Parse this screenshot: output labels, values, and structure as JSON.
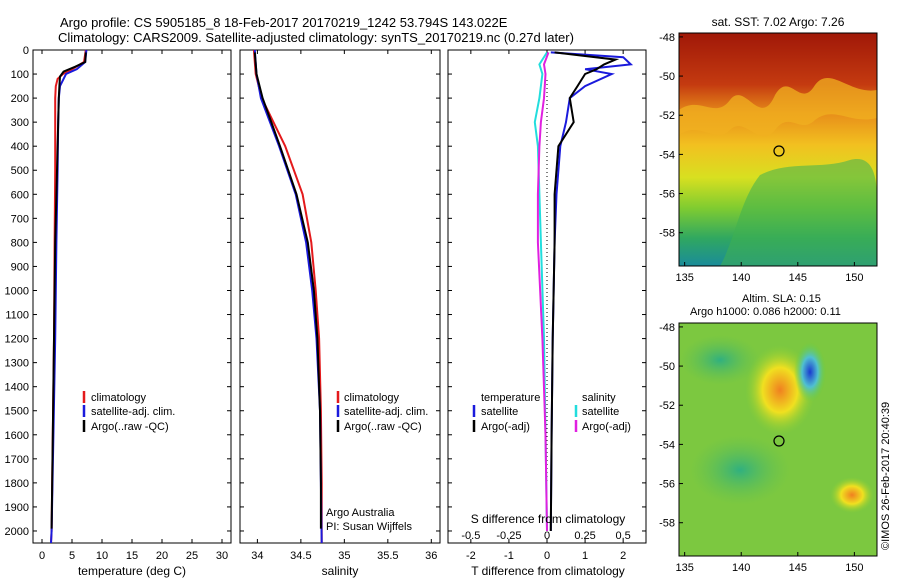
{
  "header": {
    "line1": "Argo profile: CS 5905185_8 18-Feb-2017 20170219_1242 53.794S 143.022E",
    "line2": "Climatology: CARS2009. Satellite-adjusted climatology: synTS_20170219.nc (0.27d later)"
  },
  "colors": {
    "climatology": "#e41a1c",
    "satellite": "#1a1adc",
    "argo": "#000000",
    "sat_salinity": "#22dddd",
    "argo_salinity": "#e020e0"
  },
  "chart_data": [
    {
      "type": "line",
      "name": "temperature",
      "xlabel": "temperature (deg C)",
      "ylabel": "",
      "xlim": [
        -1.5,
        31.5
      ],
      "ylim": [
        0,
        2050
      ],
      "y_reversed": true,
      "xticks": [
        "0",
        "5",
        "10",
        "15",
        "20",
        "25",
        "30"
      ],
      "yticks": [
        "0",
        "100",
        "200",
        "300",
        "400",
        "500",
        "600",
        "700",
        "800",
        "900",
        "1000",
        "1100",
        "1200",
        "1300",
        "1400",
        "1500",
        "1600",
        "1700",
        "1800",
        "1900",
        "2000"
      ],
      "legend": [
        "climatology",
        "satellite-adj. clim.",
        "Argo(..raw -QC)"
      ],
      "legend_position": "lower-center",
      "series": [
        {
          "name": "climatology",
          "depth": [
            0,
            50,
            80,
            100,
            120,
            150,
            200,
            300,
            500,
            800,
            1200,
            1600,
            2000,
            2050
          ],
          "values": [
            7.3,
            7.0,
            5.0,
            3.5,
            2.6,
            2.3,
            2.2,
            2.2,
            2.2,
            2.1,
            2.0,
            1.8,
            1.6,
            1.5
          ]
        },
        {
          "name": "satellite-adj. clim.",
          "depth": [
            0,
            50,
            80,
            100,
            150,
            200,
            300,
            500,
            800,
            1200,
            1600,
            2000,
            2050
          ],
          "values": [
            7.4,
            7.2,
            5.8,
            4.0,
            3.0,
            2.8,
            2.7,
            2.6,
            2.4,
            2.2,
            1.9,
            1.6,
            1.5
          ]
        },
        {
          "name": "Argo(..raw -QC)",
          "depth": [
            10,
            50,
            70,
            90,
            110,
            150,
            200,
            300,
            500,
            800,
            1200,
            1600,
            1990
          ],
          "values": [
            7.3,
            7.2,
            5.5,
            3.6,
            3.0,
            2.9,
            2.8,
            2.7,
            2.5,
            2.2,
            2.0,
            1.8,
            1.6
          ]
        }
      ]
    },
    {
      "type": "line",
      "name": "salinity",
      "xlabel": "salinity",
      "ylabel": "",
      "xlim": [
        33.8,
        36.1
      ],
      "ylim": [
        0,
        2050
      ],
      "y_reversed": true,
      "xticks": [
        "34",
        "34.5",
        "35",
        "35.5",
        "36"
      ],
      "legend": [
        "climatology",
        "satellite-adj. clim.",
        "Argo(..raw -QC)"
      ],
      "legend_position": "lower-right",
      "annotations": [
        "Argo Australia",
        "PI: Susan Wijffels"
      ],
      "series": [
        {
          "name": "climatology",
          "depth": [
            0,
            100,
            200,
            400,
            600,
            800,
            1000,
            1200,
            1500,
            1800,
            2050
          ],
          "values": [
            33.96,
            33.98,
            34.05,
            34.32,
            34.52,
            34.62,
            34.67,
            34.71,
            34.73,
            34.74,
            34.74
          ]
        },
        {
          "name": "satellite-adj. clim.",
          "depth": [
            0,
            100,
            200,
            400,
            600,
            800,
            1000,
            1200,
            1500,
            1800,
            2050
          ],
          "values": [
            33.97,
            33.99,
            34.04,
            34.25,
            34.44,
            34.56,
            34.63,
            34.68,
            34.72,
            34.73,
            34.74
          ]
        },
        {
          "name": "Argo(..raw -QC)",
          "depth": [
            10,
            100,
            200,
            400,
            600,
            800,
            1000,
            1200,
            1500,
            1800,
            1990
          ],
          "values": [
            33.97,
            33.99,
            34.06,
            34.26,
            34.45,
            34.58,
            34.65,
            34.69,
            34.72,
            34.73,
            34.73
          ]
        }
      ]
    },
    {
      "type": "line",
      "name": "difference-from-climatology",
      "xlabel": "T difference from climatology",
      "xlabel2": "S difference from climatology",
      "xlim": [
        -2.6,
        2.6
      ],
      "ylim": [
        0,
        2050
      ],
      "y_reversed": true,
      "xticks": [
        "-2",
        "-1",
        "0",
        "1",
        "2"
      ],
      "xticks2": [
        "-0.5",
        "-0.25",
        "0",
        "0.25",
        "0.5"
      ],
      "legend_titles": [
        "temperature",
        "salinity"
      ],
      "legend": [
        "satellite",
        "Argo(-adj)",
        "satellite",
        "Argo(-adj)"
      ],
      "series": [
        {
          "name": "T satellite",
          "depth": [
            10,
            30,
            60,
            80,
            100,
            150,
            200,
            300,
            400,
            600,
            800,
            1200,
            1600,
            2000
          ],
          "values": [
            0.1,
            2.0,
            2.2,
            1.0,
            1.7,
            1.0,
            0.6,
            0.5,
            0.35,
            0.25,
            0.2,
            0.15,
            0.12,
            0.1
          ]
        },
        {
          "name": "T Argo(-adj)",
          "depth": [
            10,
            40,
            60,
            80,
            100,
            150,
            200,
            300,
            400,
            600,
            800,
            1200,
            1600,
            2000
          ],
          "values": [
            0.2,
            1.8,
            1.5,
            1.3,
            1.0,
            0.8,
            0.6,
            0.7,
            0.3,
            0.2,
            0.2,
            0.15,
            0.12,
            0.1
          ]
        },
        {
          "name": "S satellite",
          "depth": [
            10,
            60,
            100,
            200,
            300,
            400,
            600,
            800,
            1200,
            1600,
            2000
          ],
          "values": [
            -0.0,
            -0.05,
            -0.03,
            -0.05,
            -0.08,
            -0.06,
            -0.05,
            -0.04,
            -0.02,
            -0.01,
            -0.0
          ]
        },
        {
          "name": "S Argo(-adj)",
          "depth": [
            10,
            60,
            100,
            200,
            300,
            400,
            600,
            800,
            1200,
            1600,
            2000
          ],
          "values": [
            0.01,
            -0.02,
            -0.01,
            -0.02,
            -0.04,
            -0.05,
            -0.06,
            -0.06,
            -0.03,
            -0.01,
            0.0
          ]
        }
      ]
    },
    {
      "type": "heatmap",
      "name": "sst-map",
      "title": "sat. SST: 7.02 Argo: 7.26",
      "xlim": [
        134.5,
        152
      ],
      "ylim": [
        -59.7,
        -47.8
      ],
      "xticks": [
        "135",
        "140",
        "145",
        "150"
      ],
      "yticks": [
        "-48",
        "-50",
        "-52",
        "-54",
        "-56",
        "-58"
      ],
      "marker": {
        "lon": 143.0,
        "lat": -53.8
      }
    },
    {
      "type": "heatmap",
      "name": "sla-map",
      "title": "Altim. SLA: 0.15",
      "subtitle": "Argo h1000: 0.086 h2000: 0.11",
      "xlim": [
        134.5,
        152
      ],
      "ylim": [
        -59.7,
        -47.8
      ],
      "xticks": [
        "135",
        "140",
        "145",
        "150"
      ],
      "yticks": [
        "-48",
        "-50",
        "-52",
        "-54",
        "-56",
        "-58"
      ],
      "marker": {
        "lon": 143.0,
        "lat": -53.8
      }
    }
  ],
  "footer": {
    "credit": "©IMOS 26-Feb-2017 20:40:39"
  }
}
